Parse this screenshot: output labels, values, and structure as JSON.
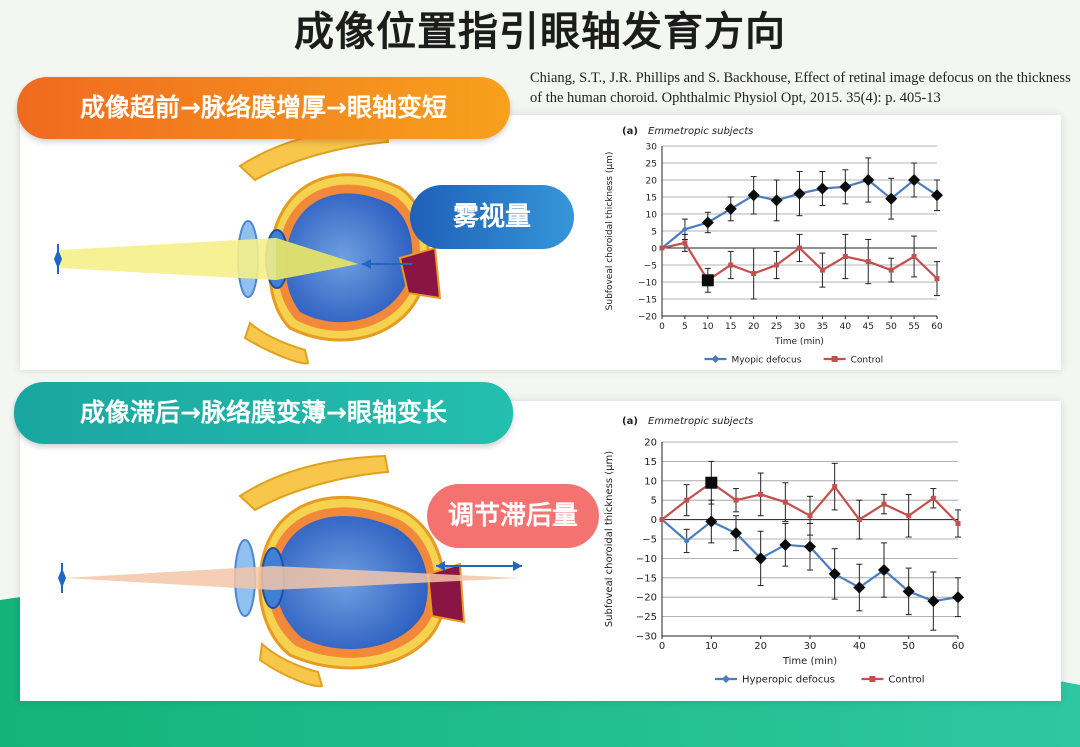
{
  "page": {
    "title": "成像位置指引眼轴发育方向",
    "citation": "Chiang, S.T., J.R. Phillips and S. Backhouse, Effect of retinal image defocus on the thickness of the human choroid. Ophthalmic Physiol Opt, 2015. 35(4): p. 405-13"
  },
  "sections": [
    {
      "label": "成像超前→脉络膜增厚→眼轴变短",
      "badge": "雾视量",
      "color": "#f38321"
    },
    {
      "label": "成像滞后→脉络膜变薄→眼轴变长",
      "badge": "调节滞后量",
      "color": "#1fb3a8"
    }
  ],
  "chart_data": [
    {
      "type": "line",
      "panel_label": "(a)",
      "subtitle": "Emmetropic subjects",
      "xlabel": "Time (min)",
      "ylabel": "Subfoveal choroidal thickness (µm)",
      "x": [
        0,
        5,
        10,
        15,
        20,
        25,
        30,
        35,
        40,
        45,
        50,
        55,
        60
      ],
      "xticks": [
        0,
        5,
        10,
        15,
        20,
        25,
        30,
        35,
        40,
        45,
        50,
        55,
        60
      ],
      "yticks": [
        -20,
        -15,
        -10,
        -5,
        0,
        5,
        10,
        15,
        20,
        25,
        30
      ],
      "xlim": [
        0,
        60
      ],
      "ylim": [
        -20,
        30
      ],
      "grid": "horizontal",
      "legend": "bottom",
      "series": [
        {
          "name": "Myopic defocus",
          "color": "#4a7cc0",
          "marker": "diamond",
          "values": [
            0,
            5.5,
            7.5,
            11.5,
            15.5,
            14,
            16,
            17.5,
            18,
            20,
            14.5,
            20,
            15.5
          ],
          "errors": [
            0,
            3,
            3,
            3.5,
            5.5,
            6,
            6.5,
            5,
            5,
            6.5,
            6,
            5,
            4.5
          ]
        },
        {
          "name": "Control",
          "color": "#c4504d",
          "marker": "square",
          "values": [
            0,
            1.5,
            -9.5,
            -5,
            -7.5,
            -5,
            0,
            -6.5,
            -2.5,
            -4,
            -6.5,
            -2.5,
            -9
          ],
          "errors": [
            0,
            2.5,
            3.5,
            4,
            7.5,
            4,
            4,
            5,
            6.5,
            6.5,
            3.5,
            6,
            5
          ]
        }
      ]
    },
    {
      "type": "line",
      "panel_label": "(a)",
      "subtitle": "Emmetropic subjects",
      "xlabel": "Time (min)",
      "ylabel": "Subfoveal choroidal thickness (µm)",
      "x": [
        0,
        5,
        10,
        15,
        20,
        25,
        30,
        35,
        40,
        45,
        50,
        55,
        60
      ],
      "xticks": [
        0,
        10,
        20,
        30,
        40,
        50,
        60
      ],
      "yticks": [
        -30,
        -25,
        -20,
        -15,
        -10,
        -5,
        0,
        5,
        10,
        15,
        20
      ],
      "xlim": [
        0,
        60
      ],
      "ylim": [
        -30,
        20
      ],
      "grid": "horizontal",
      "legend": "bottom",
      "series": [
        {
          "name": "Hyperopic defocus",
          "color": "#4a7cc0",
          "marker": "diamond",
          "values": [
            0,
            -5.5,
            -0.5,
            -3.5,
            -10,
            -6.5,
            -7,
            -14,
            -17.5,
            -13,
            -18.5,
            -21,
            -20
          ],
          "errors": [
            0,
            3,
            5.5,
            4.5,
            7,
            5.5,
            6,
            6.5,
            6,
            7,
            6,
            7.5,
            5
          ]
        },
        {
          "name": "Control",
          "color": "#c4504d",
          "marker": "square",
          "values": [
            0,
            5,
            9.5,
            5,
            6.5,
            4.5,
            1,
            8.5,
            0,
            4,
            1,
            5.5,
            -1
          ],
          "errors": [
            0,
            4,
            5.5,
            3,
            5.5,
            5,
            5,
            6,
            5,
            2.5,
            5.5,
            2.5,
            3.5
          ]
        }
      ]
    }
  ]
}
